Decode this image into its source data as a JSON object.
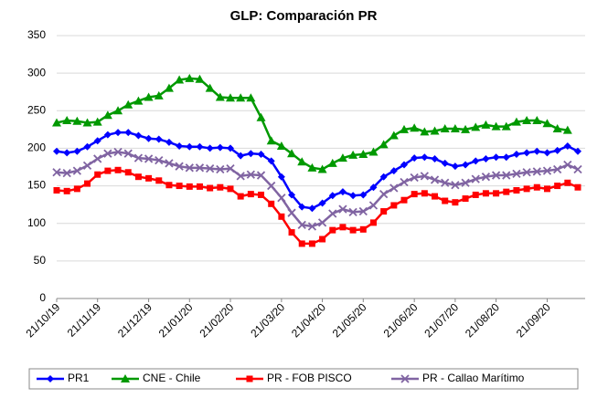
{
  "chart_data": {
    "type": "line",
    "title": "GLP: Comparación PR",
    "categories": [
      "21/10/19",
      null,
      null,
      null,
      "21/11/19",
      null,
      null,
      null,
      null,
      "21/12/19",
      null,
      null,
      null,
      "21/01/20",
      null,
      null,
      null,
      "21/02/20",
      null,
      null,
      null,
      null,
      "21/03/20",
      null,
      null,
      null,
      "21/04/20",
      null,
      null,
      null,
      "21/05/20",
      null,
      null,
      null,
      null,
      "21/06/20",
      null,
      null,
      null,
      "21/07/20",
      null,
      null,
      null,
      "21/08/20",
      null,
      null,
      null,
      null,
      "21/09/20",
      null,
      null,
      null
    ],
    "series": [
      {
        "name": "PR1",
        "color": "#0000ff",
        "marker": "diamond",
        "values": [
          196,
          194,
          196,
          202,
          210,
          218,
          221,
          221,
          217,
          213,
          212,
          208,
          203,
          202,
          202,
          200,
          201,
          200,
          190,
          193,
          192,
          183,
          162,
          138,
          122,
          120,
          127,
          137,
          142,
          137,
          138,
          148,
          162,
          170,
          178,
          187,
          188,
          186,
          180,
          176,
          178,
          183,
          186,
          188,
          188,
          192,
          194,
          196,
          194,
          197,
          203,
          196
        ]
      },
      {
        "name": "CNE - Chile",
        "color": "#009900",
        "marker": "triangle",
        "values": [
          234,
          237,
          236,
          234,
          235,
          244,
          250,
          258,
          263,
          268,
          270,
          280,
          291,
          293,
          292,
          280,
          268,
          267,
          267,
          267,
          241,
          210,
          203,
          193,
          182,
          174,
          172,
          180,
          187,
          191,
          192,
          195,
          205,
          217,
          225,
          227,
          222,
          223,
          226,
          226,
          225,
          228,
          231,
          229,
          229,
          235,
          237,
          237,
          233,
          226,
          224,
          null
        ]
      },
      {
        "name": "PR - FOB PISCO",
        "color": "#ff0000",
        "marker": "square",
        "values": [
          144,
          143,
          146,
          153,
          165,
          170,
          171,
          168,
          162,
          160,
          157,
          151,
          150,
          149,
          149,
          147,
          148,
          146,
          136,
          139,
          138,
          126,
          109,
          88,
          73,
          73,
          79,
          91,
          95,
          91,
          92,
          101,
          116,
          124,
          131,
          139,
          140,
          136,
          130,
          128,
          133,
          138,
          140,
          140,
          142,
          144,
          146,
          148,
          146,
          150,
          154,
          148
        ]
      },
      {
        "name": "PR - Callao Marítimo",
        "color": "#8064a2",
        "marker": "x",
        "values": [
          168,
          167,
          170,
          177,
          186,
          193,
          195,
          193,
          187,
          186,
          184,
          180,
          176,
          174,
          174,
          173,
          172,
          173,
          163,
          165,
          164,
          150,
          134,
          114,
          98,
          96,
          101,
          113,
          119,
          115,
          116,
          124,
          139,
          147,
          155,
          161,
          163,
          158,
          154,
          151,
          154,
          159,
          162,
          164,
          164,
          166,
          168,
          169,
          170,
          172,
          178,
          172
        ]
      }
    ],
    "ylim": [
      0,
      350
    ],
    "yticks": [
      0,
      50,
      100,
      150,
      200,
      250,
      300,
      350
    ],
    "grid": true,
    "legend": "bottom"
  }
}
